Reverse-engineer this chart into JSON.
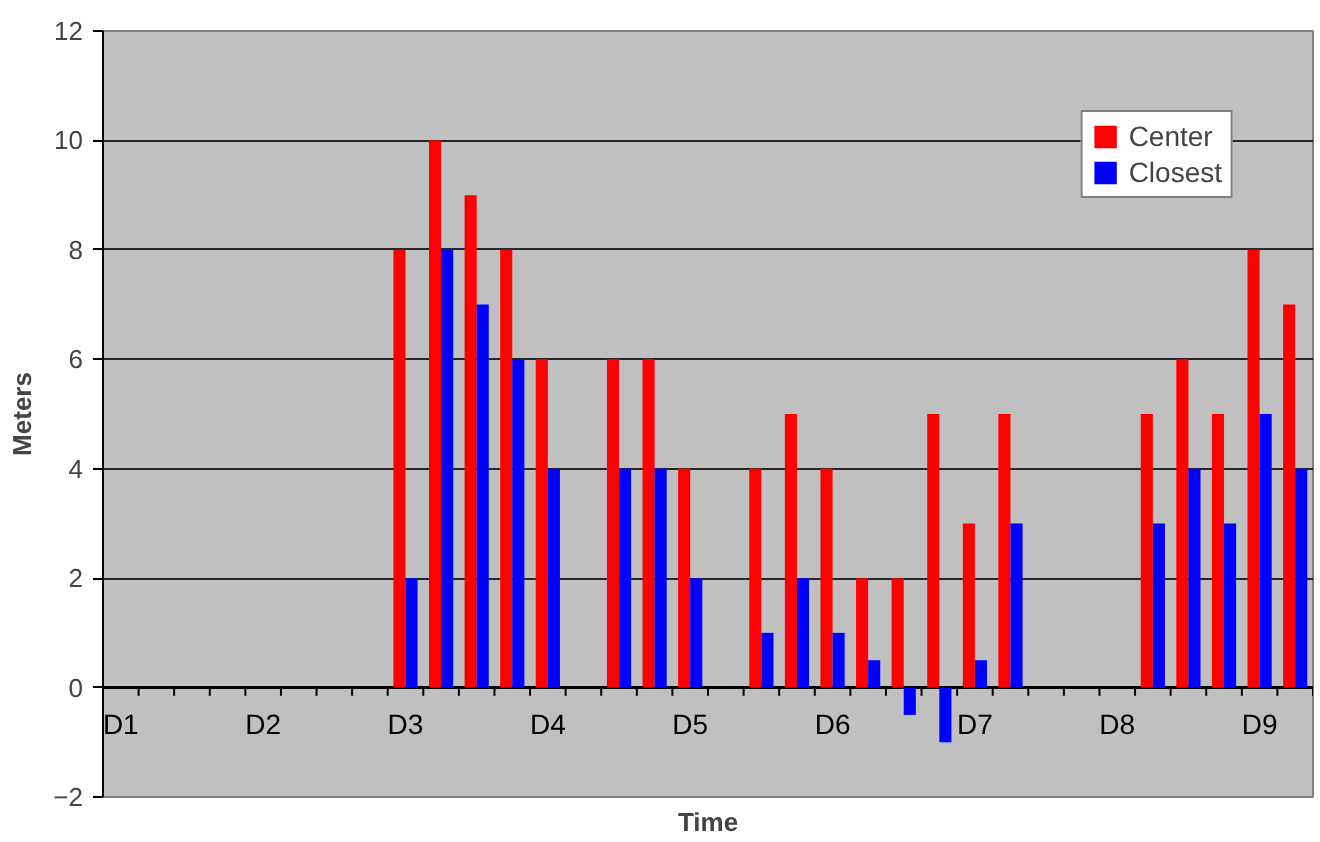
{
  "chart_data": {
    "type": "bar",
    "xlabel": "Time",
    "ylabel": "Meters",
    "categories": [
      "D1",
      null,
      null,
      null,
      "D2",
      null,
      null,
      null,
      "D3",
      null,
      null,
      null,
      "D4",
      null,
      null,
      null,
      "D5",
      null,
      null,
      null,
      "D6",
      null,
      null,
      null,
      "D7",
      null,
      null,
      null,
      "D8",
      null,
      null,
      null,
      "D9",
      null
    ],
    "series": [
      {
        "name": "Center",
        "color": "#ff0000",
        "values": [
          null,
          null,
          null,
          null,
          null,
          null,
          null,
          null,
          8,
          10,
          9,
          8,
          6,
          null,
          6,
          6,
          4,
          null,
          4,
          5,
          4,
          2,
          2,
          5,
          3,
          5,
          null,
          null,
          null,
          5,
          6,
          5,
          8,
          7
        ]
      },
      {
        "name": "Closest",
        "color": "#0000ff",
        "values": [
          null,
          null,
          null,
          null,
          null,
          null,
          null,
          null,
          2,
          8,
          7,
          6,
          4,
          null,
          4,
          4,
          2,
          null,
          1,
          2,
          1,
          0.5,
          -0.5,
          -1,
          0.5,
          3,
          null,
          null,
          null,
          3,
          4,
          3,
          5,
          4
        ]
      }
    ],
    "ylim": [
      -2,
      12
    ],
    "yticks": [
      -2,
      0,
      2,
      4,
      6,
      8,
      10,
      12
    ],
    "grid": "y",
    "legend": "top right"
  }
}
